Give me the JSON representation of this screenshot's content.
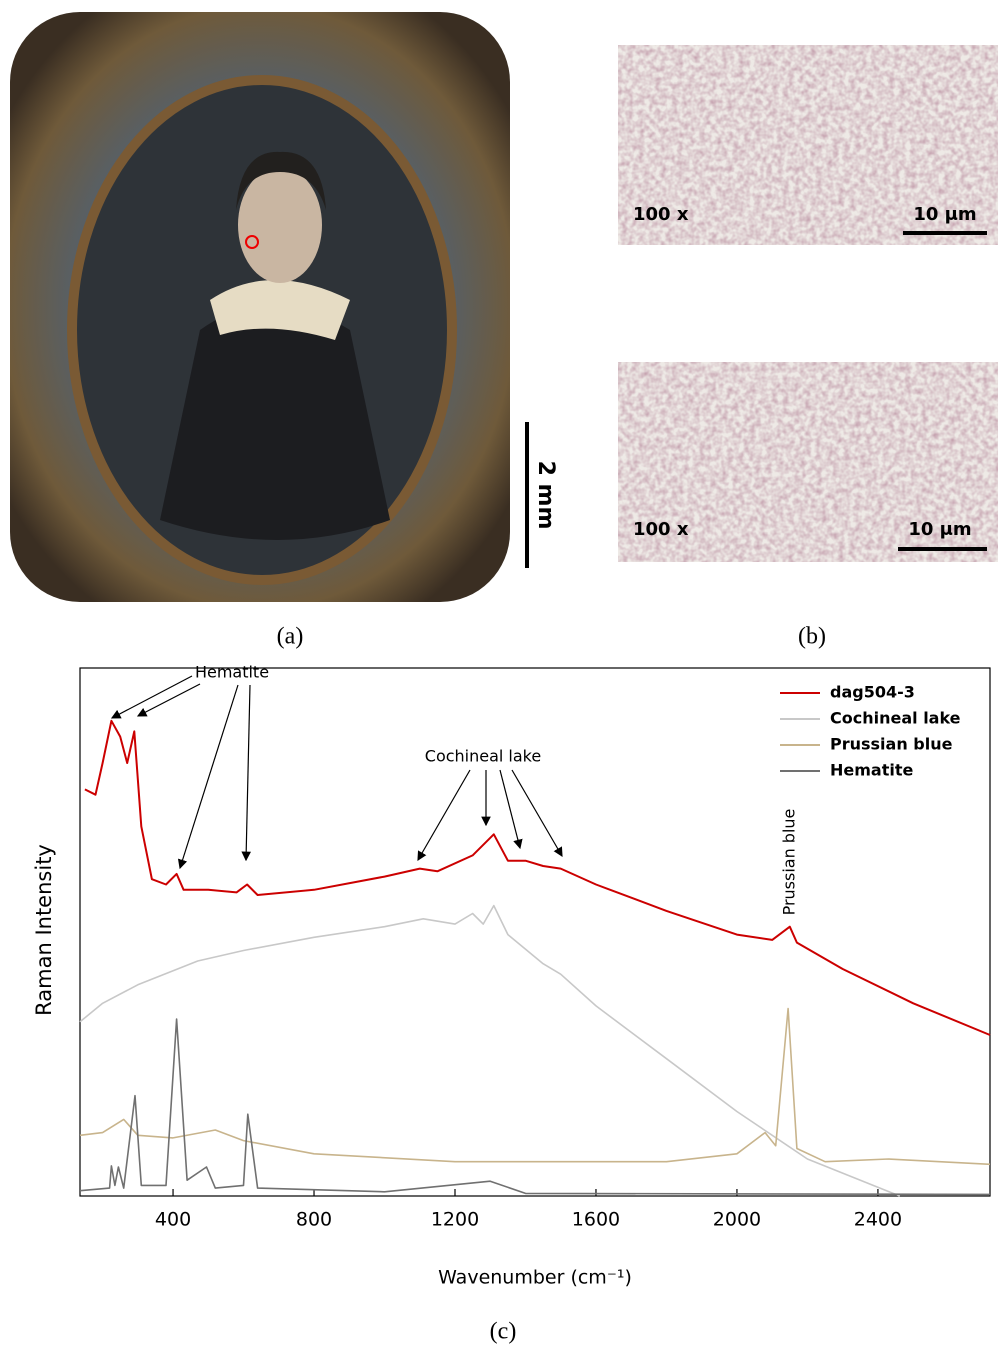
{
  "panels": {
    "a": {
      "label": "(a)",
      "scale_label": "2 mm"
    },
    "b": {
      "label": "(b)",
      "images": [
        {
          "magnification": "100 x",
          "scale_label": "10 μm"
        },
        {
          "magnification": "100 x",
          "scale_label": "10 μm"
        }
      ]
    },
    "c": {
      "label": "(c)"
    }
  },
  "chart_data": {
    "type": "line",
    "xlabel": "Wavenumber (cm⁻¹)",
    "ylabel": "Raman Intensity",
    "xlim": [
      136,
      2718
    ],
    "ylim": [
      0,
      100
    ],
    "xticks": [
      400,
      800,
      1200,
      1600,
      2000,
      2400
    ],
    "legend": "top-right",
    "annotations": [
      "Hematite",
      "Cochineal lake",
      "Prussian blue"
    ],
    "series": [
      {
        "name": "dag504-3",
        "color": "#cc0000",
        "x": [
          150,
          180,
          200,
          225,
          250,
          270,
          290,
          310,
          340,
          380,
          410,
          430,
          500,
          580,
          610,
          640,
          800,
          1000,
          1100,
          1150,
          1250,
          1310,
          1350,
          1400,
          1450,
          1500,
          1600,
          1800,
          2000,
          2100,
          2150,
          2170,
          2300,
          2500,
          2718
        ],
        "values": [
          77,
          76,
          82,
          90,
          87,
          82,
          88,
          70,
          60,
          59,
          61,
          58,
          58,
          57.5,
          59,
          57,
          58,
          60.5,
          62,
          61.5,
          64.5,
          68.5,
          63.5,
          63.5,
          62.5,
          62,
          59,
          54,
          49.5,
          48.5,
          51,
          48,
          43,
          36.5,
          30.5
        ]
      },
      {
        "name": "Cochineal lake",
        "color": "#c8c8c8",
        "x": [
          136,
          200,
          300,
          470,
          600,
          800,
          1000,
          1110,
          1200,
          1250,
          1280,
          1310,
          1350,
          1450,
          1500,
          1600,
          1800,
          2000,
          2200,
          2462
        ],
        "values": [
          33,
          36.5,
          40,
          44.5,
          46.5,
          49,
          51,
          52.5,
          51.5,
          53.5,
          51.5,
          55,
          49.5,
          44,
          42,
          36,
          26,
          16,
          7,
          0
        ]
      },
      {
        "name": "Prussian blue",
        "color": "#c8b48c",
        "x": [
          136,
          200,
          260,
          300,
          400,
          520,
          600,
          800,
          1200,
          1800,
          2000,
          2080,
          2110,
          2145,
          2170,
          2250,
          2430,
          2718
        ],
        "values": [
          11.5,
          12,
          14.5,
          11.5,
          11,
          12.5,
          10.5,
          8,
          6.5,
          6.5,
          8,
          12,
          9.5,
          35.5,
          9,
          6.5,
          7,
          6
        ]
      },
      {
        "name": "Hematite",
        "color": "#707070",
        "x": [
          136,
          220,
          225,
          235,
          245,
          260,
          292,
          310,
          380,
          410,
          440,
          495,
          520,
          600,
          612,
          640,
          1000,
          1300,
          1400,
          2718
        ],
        "values": [
          1,
          1.5,
          5.7,
          2,
          5.5,
          1.5,
          19,
          2,
          2,
          33.5,
          3,
          5.5,
          1.5,
          2,
          15.5,
          1.5,
          0.8,
          2.8,
          0.5,
          0.3
        ]
      }
    ]
  }
}
